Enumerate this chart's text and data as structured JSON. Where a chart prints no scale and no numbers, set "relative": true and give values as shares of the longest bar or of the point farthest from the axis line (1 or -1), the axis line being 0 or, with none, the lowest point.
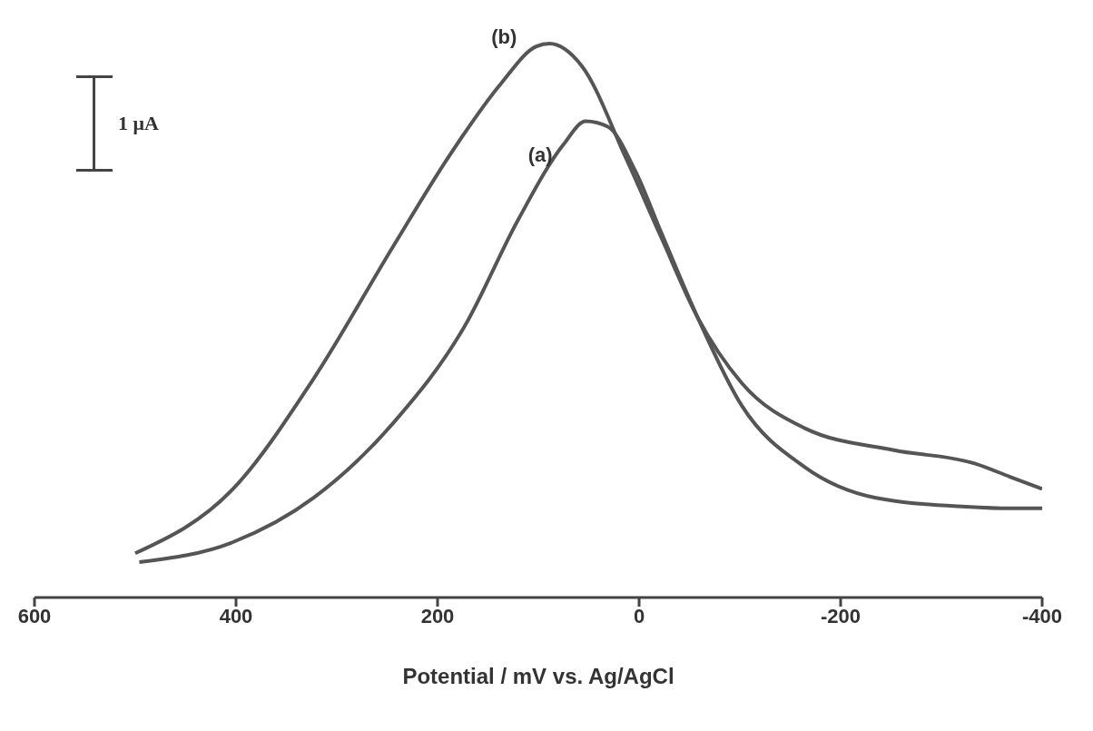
{
  "chart_data": {
    "type": "line",
    "relative": true,
    "xlabel": "Potential / mV vs. Ag/AgCl",
    "xlim": [
      600,
      -400
    ],
    "xticks": [
      600,
      400,
      200,
      0,
      -200,
      -400
    ],
    "marker": "none",
    "line_style": "solid",
    "annotations": [
      "1 μA"
    ],
    "series": [
      {
        "name": "(b)",
        "color": "#555555",
        "x": [
          500,
          403,
          323,
          244,
          190,
          137,
          102,
          89,
          57,
          13,
          -22,
          -58,
          -102,
          -164,
          -253,
          -333,
          -368,
          -400
        ],
        "values": [
          0.08,
          0.196,
          0.395,
          0.634,
          0.793,
          0.928,
          0.995,
          1.0,
          0.96,
          0.793,
          0.65,
          0.506,
          0.387,
          0.306,
          0.266,
          0.242,
          0.218,
          0.196
        ]
      },
      {
        "name": "(a)",
        "color": "#555555",
        "x": [
          496,
          403,
          323,
          244,
          173,
          120,
          75,
          53,
          31,
          4,
          -22,
          -58,
          -102,
          -164,
          -235,
          -324,
          -368,
          -400
        ],
        "values": [
          0.064,
          0.1,
          0.18,
          0.315,
          0.49,
          0.682,
          0.818,
          0.86,
          0.85,
          0.771,
          0.659,
          0.506,
          0.346,
          0.236,
          0.18,
          0.164,
          0.161,
          0.161
        ]
      }
    ]
  }
}
